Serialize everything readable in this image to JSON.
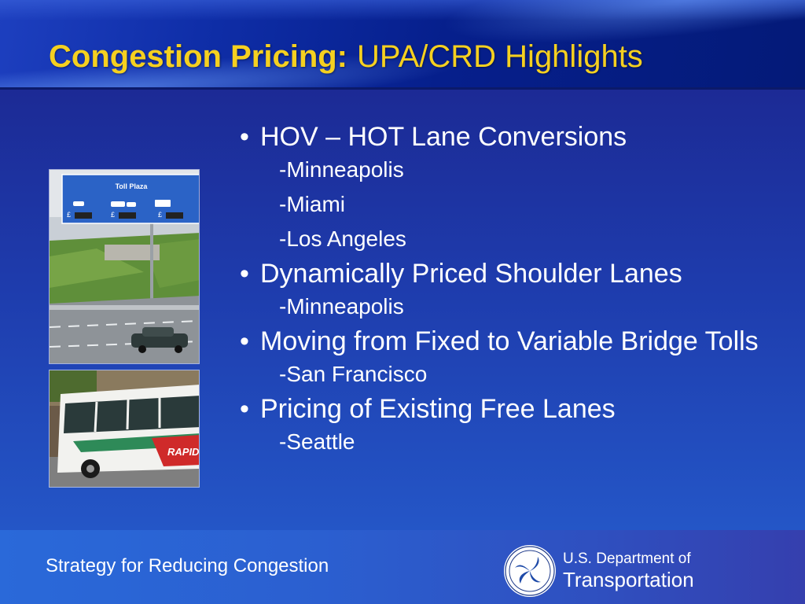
{
  "slide": {
    "title_bold": "Congestion Pricing:",
    "title_rest": "UPA/CRD Highlights"
  },
  "photos": {
    "toll_sign_text": "Toll Plaza",
    "toll_sign_symbol": "£",
    "bus_text": "RAPID"
  },
  "bullets": [
    {
      "text": "HOV – HOT Lane Conversions",
      "subs": [
        "-Minneapolis",
        "-Miami",
        "-Los Angeles"
      ]
    },
    {
      "text": "Dynamically Priced Shoulder Lanes",
      "subs": [
        "-Minneapolis"
      ]
    },
    {
      "text": "Moving from Fixed to Variable Bridge Tolls",
      "subs": [
        "-San Francisco"
      ]
    },
    {
      "text": "Pricing of Existing Free Lanes",
      "subs": [
        "-Seattle"
      ]
    }
  ],
  "bullet_glyph": "•",
  "footer": {
    "strategy": "Strategy for Reducing Congestion",
    "dept_line1": "U.S. Department of",
    "dept_line2": "Transportation"
  },
  "colors": {
    "title": "#f5d020",
    "text": "#ffffff",
    "background_top": "#061f8c",
    "background_bottom": "#2456c7"
  }
}
